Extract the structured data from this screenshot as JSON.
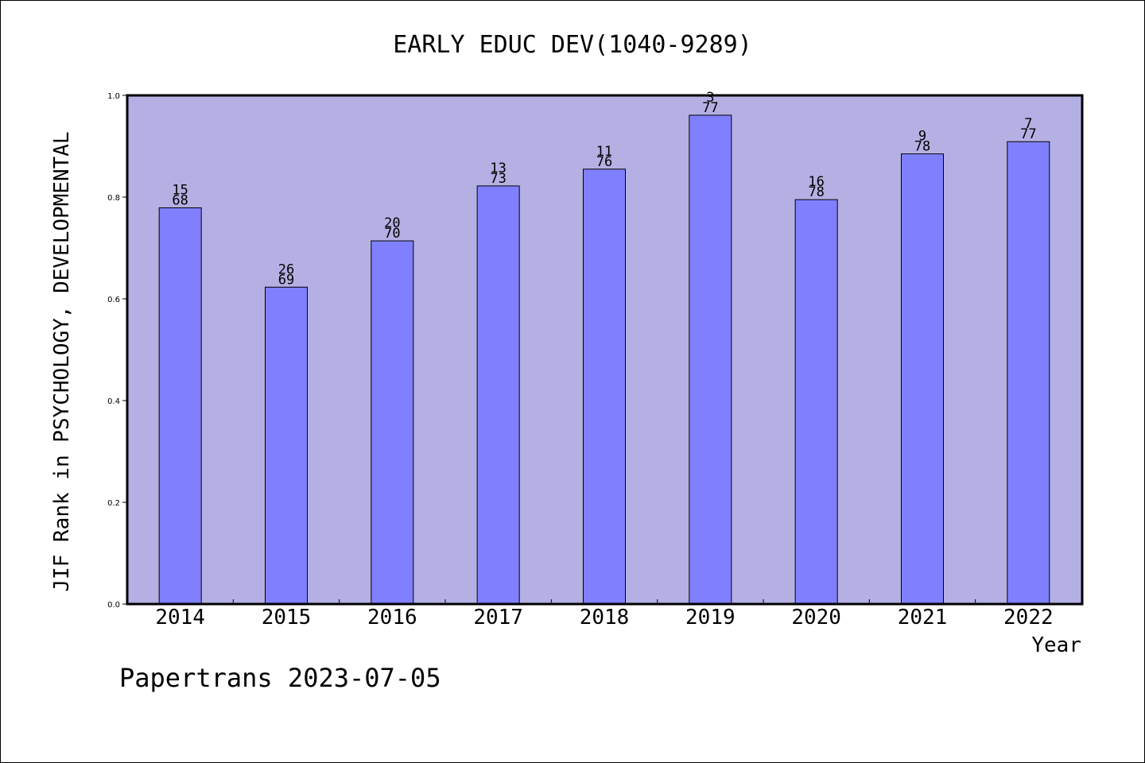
{
  "chart_data": {
    "type": "bar",
    "title": "EARLY EDUC DEV(1040-9289)",
    "xlabel": "Year",
    "ylabel": "JIF Rank in PSYCHOLOGY, DEVELOPMENTAL",
    "ylim": [
      0,
      1.0
    ],
    "yticks": [
      "0.0",
      "0.2",
      "0.4",
      "0.6",
      "0.8",
      "1.0"
    ],
    "categories": [
      "2014",
      "2015",
      "2016",
      "2017",
      "2018",
      "2019",
      "2020",
      "2021",
      "2022"
    ],
    "values": [
      0.779,
      0.623,
      0.714,
      0.822,
      0.855,
      0.961,
      0.795,
      0.885,
      0.909
    ],
    "rank": [
      "15",
      "26",
      "20",
      "13",
      "11",
      "3",
      "16",
      "9",
      "7"
    ],
    "total": [
      "68",
      "69",
      "70",
      "73",
      "76",
      "77",
      "78",
      "78",
      "77"
    ],
    "grid": false,
    "legend": "none",
    "colors": {
      "plot_background": "#b5b0e3",
      "bar_fill": "#8080ff",
      "bar_stroke": "#000000",
      "axis": "#000000"
    }
  },
  "footer": "Papertrans 2023-07-05"
}
